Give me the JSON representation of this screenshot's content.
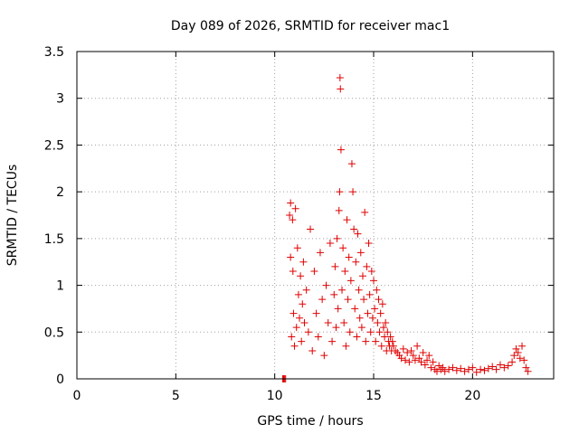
{
  "chart_data": {
    "type": "scatter",
    "title": "Day 089 of 2026, SRMTID for receiver mac1",
    "xlabel": "GPS time / hours",
    "ylabel": "SRMTID / TECUs",
    "xlim": [
      0,
      24.1
    ],
    "ylim": [
      0,
      3.5
    ],
    "xticks": [
      0,
      5,
      10,
      15,
      20
    ],
    "xtick_labels": [
      "0",
      "5",
      "10",
      "15",
      "20"
    ],
    "yticks": [
      0,
      0.5,
      1,
      1.5,
      2,
      2.5,
      3,
      3.5
    ],
    "ytick_labels": [
      "0",
      "0.5",
      "1",
      "1.5",
      "2",
      "2.5",
      "3",
      "3.5"
    ],
    "grid": true,
    "marker": "plus",
    "color": "#e00000",
    "series": [
      {
        "name": "mac1",
        "x": [
          10.4,
          10.45,
          10.5,
          10.55,
          10.75,
          10.8,
          10.8,
          10.85,
          10.9,
          10.92,
          10.95,
          11.0,
          11.05,
          11.1,
          11.15,
          11.2,
          11.25,
          11.3,
          11.35,
          11.4,
          11.45,
          11.5,
          11.6,
          11.7,
          11.8,
          11.9,
          12.0,
          12.1,
          12.2,
          12.3,
          12.4,
          12.5,
          12.6,
          12.7,
          12.8,
          12.9,
          13.0,
          13.05,
          13.1,
          13.15,
          13.2,
          13.25,
          13.28,
          13.3,
          13.32,
          13.35,
          13.4,
          13.45,
          13.5,
          13.55,
          13.6,
          13.65,
          13.7,
          13.75,
          13.8,
          13.85,
          13.9,
          13.95,
          14.0,
          14.05,
          14.1,
          14.15,
          14.2,
          14.25,
          14.3,
          14.35,
          14.4,
          14.45,
          14.5,
          14.55,
          14.6,
          14.65,
          14.7,
          14.75,
          14.8,
          14.85,
          14.9,
          14.95,
          15.0,
          15.05,
          15.1,
          15.15,
          15.2,
          15.25,
          15.3,
          15.35,
          15.4,
          15.45,
          15.5,
          15.55,
          15.6,
          15.65,
          15.7,
          15.75,
          15.8,
          15.85,
          15.9,
          15.95,
          16.0,
          16.1,
          16.2,
          16.3,
          16.4,
          16.5,
          16.6,
          16.7,
          16.8,
          16.9,
          17.0,
          17.1,
          17.2,
          17.3,
          17.4,
          17.5,
          17.6,
          17.7,
          17.8,
          17.9,
          18.0,
          18.1,
          18.2,
          18.3,
          18.4,
          18.5,
          18.6,
          18.8,
          19.0,
          19.2,
          19.4,
          19.6,
          19.8,
          20.0,
          20.2,
          20.4,
          20.6,
          20.8,
          21.0,
          21.2,
          21.4,
          21.6,
          21.8,
          22.0,
          22.1,
          22.2,
          22.3,
          22.4,
          22.5,
          22.6,
          22.7,
          22.8
        ],
        "y": [
          0.0,
          0.0,
          0.0,
          0.0,
          1.75,
          1.88,
          1.3,
          0.45,
          1.7,
          1.15,
          0.7,
          0.35,
          1.82,
          0.55,
          1.4,
          0.9,
          0.65,
          1.1,
          0.4,
          0.8,
          1.25,
          0.6,
          0.95,
          0.5,
          1.6,
          0.3,
          1.15,
          0.7,
          0.45,
          1.35,
          0.85,
          0.25,
          1.0,
          0.6,
          1.45,
          0.4,
          0.9,
          1.2,
          0.55,
          1.5,
          0.75,
          1.8,
          2.0,
          3.22,
          3.1,
          2.45,
          0.95,
          1.4,
          0.6,
          1.15,
          0.35,
          1.7,
          0.85,
          1.3,
          0.5,
          1.05,
          2.3,
          2.0,
          1.6,
          0.75,
          1.25,
          0.45,
          1.55,
          0.95,
          0.65,
          1.35,
          0.55,
          1.1,
          0.85,
          1.78,
          0.4,
          1.2,
          0.7,
          1.45,
          0.9,
          0.5,
          1.15,
          0.65,
          1.05,
          0.75,
          0.4,
          0.95,
          0.6,
          0.85,
          0.5,
          0.7,
          0.35,
          0.8,
          0.55,
          0.45,
          0.6,
          0.3,
          0.5,
          0.4,
          0.35,
          0.45,
          0.3,
          0.4,
          0.35,
          0.3,
          0.28,
          0.25,
          0.22,
          0.32,
          0.2,
          0.28,
          0.18,
          0.3,
          0.25,
          0.2,
          0.35,
          0.22,
          0.18,
          0.28,
          0.15,
          0.2,
          0.25,
          0.12,
          0.18,
          0.1,
          0.08,
          0.14,
          0.1,
          0.12,
          0.08,
          0.1,
          0.12,
          0.09,
          0.11,
          0.08,
          0.1,
          0.12,
          0.07,
          0.1,
          0.09,
          0.11,
          0.13,
          0.1,
          0.15,
          0.12,
          0.14,
          0.18,
          0.25,
          0.32,
          0.28,
          0.22,
          0.35,
          0.2,
          0.12,
          0.08
        ]
      }
    ]
  }
}
